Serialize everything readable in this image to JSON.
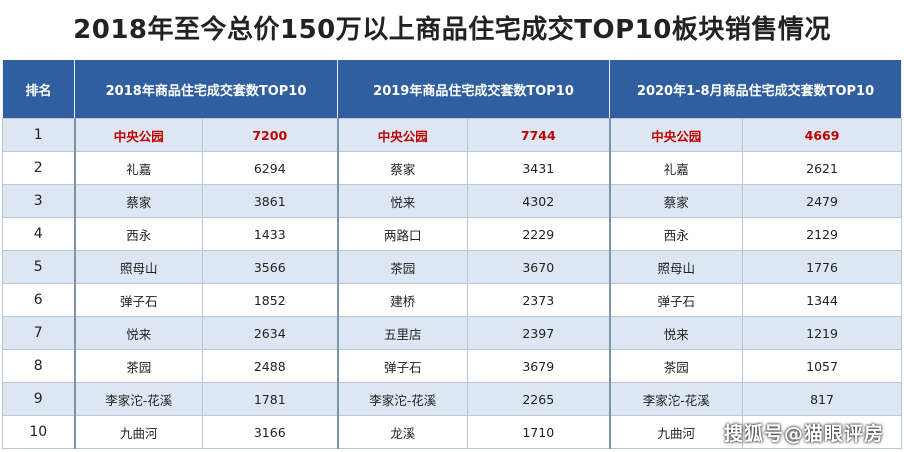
{
  "title": "2018年至今总价150万以上商品住宅成交TOP10板块销售情况",
  "headers": {
    "rank": "排名",
    "col2018": "2018年商品住宅成交套数TOP10",
    "col2019": "2019年商品住宅成交套数TOP10",
    "col2020": "2020年1-8月商品住宅成交套数TOP10"
  },
  "rows": [
    {
      "rank": "1",
      "n2018": "中央公园",
      "v2018": "7200",
      "n2019": "中央公园",
      "v2019": "7744",
      "n2020": "中央公园",
      "v2020": "4669"
    },
    {
      "rank": "2",
      "n2018": "礼嘉",
      "v2018": "6294",
      "n2019": "蔡家",
      "v2019": "3431",
      "n2020": "礼嘉",
      "v2020": "2621"
    },
    {
      "rank": "3",
      "n2018": "蔡家",
      "v2018": "3861",
      "n2019": "悦来",
      "v2019": "4302",
      "n2020": "蔡家",
      "v2020": "2479"
    },
    {
      "rank": "4",
      "n2018": "西永",
      "v2018": "1433",
      "n2019": "两路口",
      "v2019": "2229",
      "n2020": "西永",
      "v2020": "2129"
    },
    {
      "rank": "5",
      "n2018": "照母山",
      "v2018": "3566",
      "n2019": "茶园",
      "v2019": "3670",
      "n2020": "照母山",
      "v2020": "1776"
    },
    {
      "rank": "6",
      "n2018": "弹子石",
      "v2018": "1852",
      "n2019": "建桥",
      "v2019": "2373",
      "n2020": "弹子石",
      "v2020": "1344"
    },
    {
      "rank": "7",
      "n2018": "悦来",
      "v2018": "2634",
      "n2019": "五里店",
      "v2019": "2397",
      "n2020": "悦来",
      "v2020": "1219"
    },
    {
      "rank": "8",
      "n2018": "茶园",
      "v2018": "2488",
      "n2019": "弹子石",
      "v2019": "3679",
      "n2020": "茶园",
      "v2020": "1057"
    },
    {
      "rank": "9",
      "n2018": "李家沱-花溪",
      "v2018": "1781",
      "n2019": "李家沱-花溪",
      "v2019": "2265",
      "n2020": "李家沱-花溪",
      "v2020": "817"
    },
    {
      "rank": "10",
      "n2018": "九曲河",
      "v2018": "3166",
      "n2019": "龙溪",
      "v2019": "1710",
      "n2020": "九曲河",
      "v2020": ""
    }
  ],
  "watermark": "搜狐号@猫眼评房",
  "colors": {
    "header_bg": "#2f5f9e",
    "highlight": "#c00000",
    "row_alt": "#dde7f3"
  }
}
